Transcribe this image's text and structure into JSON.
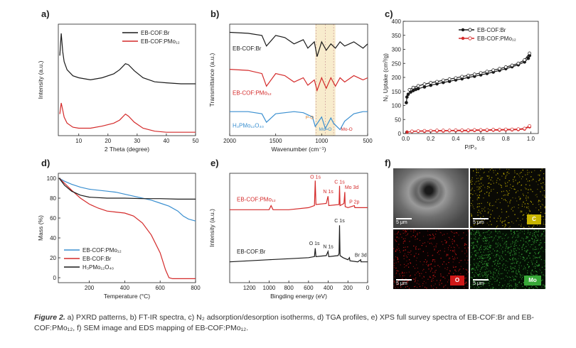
{
  "figure": {
    "caption_label": "Figure 2.",
    "caption_text": " a) PXRD patterns, b) FT-IR spectra, c) N₂ adsorption/desorption isotherms, d) TGA profiles, e) XPS full survey spectra of EB-COF:Br and EB-COF:PMo₁₂, f) SEM image and EDS mapping of EB-COF:PMo₁₂."
  },
  "panels": {
    "a": {
      "label": "a)"
    },
    "b": {
      "label": "b)"
    },
    "c": {
      "label": "c)"
    },
    "d": {
      "label": "d)"
    },
    "e": {
      "label": "e)"
    },
    "f": {
      "label": "f)"
    }
  },
  "colors": {
    "black": "#1a1a1a",
    "red": "#d42a2a",
    "blue": "#3a8fd0",
    "highlight": "#f6e7c1"
  },
  "chart_data": [
    {
      "id": "a",
      "type": "line",
      "xlabel": "2 Theta (degree)",
      "ylabel": "Intensity (a.u.)",
      "xlim": [
        3,
        50
      ],
      "xticks": [
        10,
        20,
        30,
        40,
        50
      ],
      "series": [
        {
          "name": "EB-COF:Br",
          "color": "#1a1a1a",
          "x": [
            3.5,
            4,
            4.5,
            5,
            6,
            8,
            10,
            14,
            18,
            22,
            24,
            26,
            27,
            29,
            32,
            36,
            40,
            45,
            50
          ],
          "y": [
            0.78,
            1.0,
            0.82,
            0.72,
            0.64,
            0.58,
            0.56,
            0.54,
            0.56,
            0.6,
            0.64,
            0.7,
            0.69,
            0.63,
            0.56,
            0.52,
            0.51,
            0.5,
            0.5
          ]
        },
        {
          "name": "EB-COF:PMo₁₂",
          "color": "#d42a2a",
          "x": [
            3.5,
            4,
            4.5,
            5,
            6,
            8,
            10,
            14,
            18,
            22,
            24,
            26,
            27,
            29,
            32,
            36,
            40,
            45,
            50
          ],
          "y": [
            0.2,
            0.31,
            0.24,
            0.17,
            0.11,
            0.07,
            0.06,
            0.06,
            0.08,
            0.11,
            0.14,
            0.2,
            0.18,
            0.12,
            0.06,
            0.03,
            0.02,
            0.02,
            0.02
          ]
        }
      ]
    },
    {
      "id": "b",
      "type": "line",
      "xlabel": "Wavenumber (cm⁻¹)",
      "ylabel": "Transmittance (a.u.)",
      "xlim": [
        2000,
        500
      ],
      "xticks": [
        2000,
        1500,
        1000,
        500
      ],
      "annotations": [
        "P-O",
        "Mo=O",
        "Mo-O"
      ],
      "series": [
        {
          "name": "EB-COF:Br",
          "color": "#1a1a1a",
          "x": [
            2000,
            1800,
            1650,
            1600,
            1500,
            1400,
            1300,
            1200,
            1150,
            1080,
            1050,
            1000,
            950,
            900,
            850,
            800,
            750,
            650,
            550,
            500
          ],
          "y": [
            0.95,
            0.94,
            0.92,
            0.82,
            0.92,
            0.9,
            0.84,
            0.88,
            0.8,
            0.86,
            0.72,
            0.86,
            0.78,
            0.84,
            0.8,
            0.86,
            0.82,
            0.86,
            0.8,
            0.84
          ]
        },
        {
          "name": "EB-COF:PMo₁₂",
          "color": "#d42a2a",
          "x": [
            2000,
            1800,
            1650,
            1600,
            1500,
            1400,
            1300,
            1200,
            1150,
            1080,
            1050,
            1000,
            950,
            900,
            850,
            800,
            750,
            650,
            550,
            500
          ],
          "y": [
            0.6,
            0.59,
            0.56,
            0.44,
            0.56,
            0.54,
            0.48,
            0.52,
            0.45,
            0.5,
            0.4,
            0.52,
            0.42,
            0.52,
            0.44,
            0.52,
            0.48,
            0.54,
            0.5,
            0.52
          ]
        },
        {
          "name": "H₃PMo₁₂O₄₀",
          "color": "#3a8fd0",
          "x": [
            2000,
            1800,
            1650,
            1600,
            1500,
            1300,
            1200,
            1100,
            1070,
            1000,
            960,
            900,
            870,
            800,
            750,
            650,
            550,
            500
          ],
          "y": [
            0.2,
            0.2,
            0.18,
            0.1,
            0.18,
            0.2,
            0.19,
            0.15,
            0.06,
            0.15,
            0.04,
            0.14,
            0.09,
            0.03,
            0.11,
            0.18,
            0.2,
            0.2
          ]
        }
      ]
    },
    {
      "id": "c",
      "type": "scatter",
      "xlabel": "P/P₀",
      "ylabel": "N₂ Uptake (cm³/g)",
      "xlim": [
        0.0,
        1.0
      ],
      "ylim": [
        0,
        400
      ],
      "xticks": [
        0.0,
        0.2,
        0.4,
        0.6,
        0.8,
        1.0
      ],
      "yticks": [
        0,
        50,
        100,
        150,
        200,
        250,
        300,
        350,
        400
      ],
      "series": [
        {
          "name": "EB-COF:Br",
          "color": "#1a1a1a",
          "filled": true,
          "x": [
            0.005,
            0.01,
            0.02,
            0.04,
            0.06,
            0.08,
            0.1,
            0.15,
            0.2,
            0.25,
            0.3,
            0.35,
            0.4,
            0.45,
            0.5,
            0.55,
            0.6,
            0.65,
            0.7,
            0.75,
            0.8,
            0.85,
            0.9,
            0.95,
            0.98,
            0.99
          ],
          "y": [
            110,
            130,
            140,
            148,
            153,
            157,
            160,
            166,
            172,
            177,
            182,
            186,
            191,
            195,
            200,
            204,
            209,
            214,
            219,
            225,
            231,
            238,
            245,
            255,
            268,
            278
          ]
        },
        {
          "name": "EB-COF:Br",
          "color": "#1a1a1a",
          "filled": false,
          "x": [
            0.99,
            0.95,
            0.9,
            0.85,
            0.8,
            0.75,
            0.7,
            0.65,
            0.6,
            0.55,
            0.5,
            0.45,
            0.4,
            0.35,
            0.3,
            0.25,
            0.2,
            0.15,
            0.1,
            0.06,
            0.03
          ],
          "y": [
            286,
            262,
            250,
            243,
            237,
            231,
            226,
            221,
            216,
            211,
            207,
            203,
            198,
            194,
            190,
            185,
            181,
            176,
            170,
            164,
            156
          ]
        },
        {
          "name": "EB-COF:PMo₁₂",
          "color": "#d42a2a",
          "filled": true,
          "x": [
            0.01,
            0.05,
            0.1,
            0.15,
            0.2,
            0.25,
            0.3,
            0.35,
            0.4,
            0.45,
            0.5,
            0.55,
            0.6,
            0.65,
            0.7,
            0.75,
            0.8,
            0.85,
            0.9,
            0.95,
            0.99
          ],
          "y": [
            5,
            7,
            8,
            8,
            9,
            9,
            9,
            10,
            10,
            10,
            10,
            11,
            11,
            11,
            12,
            12,
            13,
            13,
            14,
            16,
            24
          ]
        },
        {
          "name": "EB-COF:PMo₁₂",
          "color": "#d42a2a",
          "filled": false,
          "x": [
            0.99,
            0.95,
            0.9,
            0.85,
            0.8,
            0.75,
            0.7,
            0.65,
            0.6,
            0.55,
            0.5,
            0.45,
            0.4,
            0.35,
            0.3,
            0.25,
            0.2,
            0.15,
            0.1,
            0.05
          ],
          "y": [
            27,
            18,
            16,
            15,
            15,
            14,
            14,
            13,
            13,
            13,
            12,
            12,
            12,
            11,
            11,
            11,
            10,
            10,
            9,
            8
          ]
        }
      ]
    },
    {
      "id": "d",
      "type": "line",
      "xlabel": "Temperature (°C)",
      "ylabel": "Mass (%)",
      "xlim": [
        25,
        800
      ],
      "ylim": [
        -5,
        105
      ],
      "xticks": [
        200,
        400,
        600,
        800
      ],
      "yticks": [
        0,
        20,
        40,
        60,
        80,
        100
      ],
      "series": [
        {
          "name": "EB-COF:PMo₁₂",
          "color": "#3a8fd0",
          "x": [
            30,
            60,
            100,
            150,
            200,
            250,
            300,
            350,
            400,
            450,
            500,
            550,
            600,
            650,
            700,
            730,
            760,
            800
          ],
          "y": [
            100,
            97,
            94,
            91,
            89,
            88,
            87,
            86,
            84,
            82,
            80,
            78,
            75,
            72,
            67,
            62,
            59,
            57
          ]
        },
        {
          "name": "EB-COF:Br",
          "color": "#d42a2a",
          "x": [
            30,
            60,
            100,
            150,
            200,
            250,
            300,
            350,
            400,
            450,
            500,
            550,
            600,
            630,
            650,
            670,
            700,
            800
          ],
          "y": [
            100,
            95,
            88,
            80,
            74,
            70,
            67,
            66,
            65,
            62,
            55,
            43,
            25,
            8,
            0,
            -1,
            -1,
            -1
          ]
        },
        {
          "name": "H₃PMo₁₂O₄₀",
          "color": "#1a1a1a",
          "x": [
            30,
            60,
            100,
            150,
            200,
            300,
            400,
            500,
            600,
            700,
            800
          ],
          "y": [
            100,
            93,
            87,
            83,
            81,
            80,
            80,
            79.5,
            79.5,
            79,
            79
          ]
        }
      ]
    },
    {
      "id": "e",
      "type": "line",
      "xlabel": "Bingding energy (eV)",
      "ylabel": "Intensity (a.u.)",
      "xlim": [
        1400,
        0
      ],
      "xticks": [
        1200,
        1000,
        800,
        600,
        400,
        200,
        0
      ],
      "peak_labels": {
        "pmo": [
          "O 1s",
          "N 1s",
          "C 1s",
          "Mo 3d",
          "P 2p"
        ],
        "br": [
          "O 1s",
          "N 1s",
          "C 1s",
          "Br 3d"
        ]
      },
      "series": [
        {
          "name": "EB-COF:PMo₁₂",
          "color": "#d42a2a",
          "x": [
            1400,
            1200,
            1000,
            980,
            960,
            800,
            600,
            540,
            532,
            525,
            420,
            402,
            395,
            290,
            285,
            280,
            240,
            232,
            228,
            200,
            135,
            130,
            100,
            0
          ],
          "y": [
            0.7,
            0.7,
            0.7,
            0.74,
            0.7,
            0.7,
            0.72,
            0.74,
            0.98,
            0.75,
            0.76,
            0.83,
            0.74,
            0.75,
            0.93,
            0.74,
            0.76,
            0.87,
            0.73,
            0.72,
            0.74,
            0.72,
            0.72,
            0.72
          ]
        },
        {
          "name": "EB-COF:Br",
          "color": "#1a1a1a",
          "x": [
            1400,
            1200,
            1000,
            800,
            600,
            540,
            532,
            525,
            420,
            402,
            395,
            300,
            290,
            285,
            280,
            250,
            200,
            185,
            180,
            100,
            70,
            68,
            0
          ],
          "y": [
            0.2,
            0.21,
            0.22,
            0.23,
            0.24,
            0.25,
            0.33,
            0.25,
            0.26,
            0.3,
            0.25,
            0.26,
            0.28,
            0.55,
            0.26,
            0.24,
            0.22,
            0.24,
            0.21,
            0.2,
            0.22,
            0.2,
            0.2
          ]
        }
      ]
    }
  ],
  "sem": {
    "scale_bar": "5 μm",
    "tiles": [
      {
        "element": ""
      },
      {
        "element": "C",
        "color": "#c8b400"
      },
      {
        "element": "O",
        "color": "#d01818"
      },
      {
        "element": "Mo",
        "color": "#38a838"
      }
    ]
  }
}
